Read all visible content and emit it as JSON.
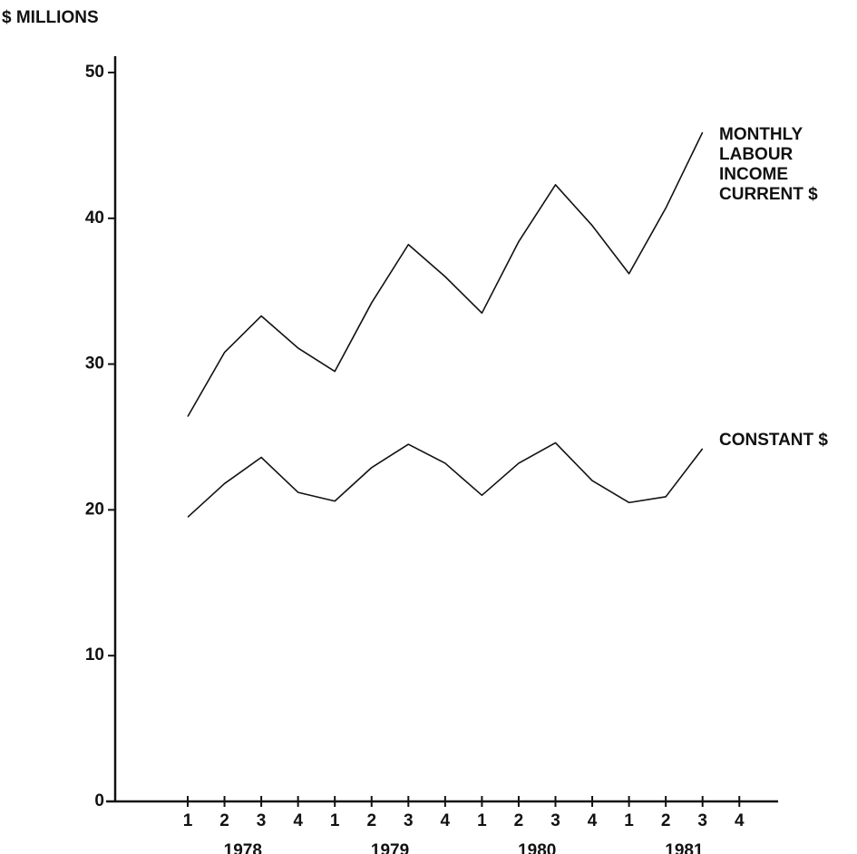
{
  "chart_data": {
    "type": "line",
    "y_label": "$ MILLIONS",
    "categories": [
      "1",
      "2",
      "3",
      "4",
      "1",
      "2",
      "3",
      "4",
      "1",
      "2",
      "3",
      "4",
      "1",
      "2",
      "3",
      "4"
    ],
    "years": [
      "1978",
      "1979",
      "1980",
      "1981"
    ],
    "series": [
      {
        "name": "MONTHLY\nLABOUR\nINCOME\nCURRENT $",
        "color": "#111111",
        "values": [
          26.4,
          30.8,
          33.3,
          31.1,
          29.5,
          34.2,
          38.2,
          36.0,
          33.5,
          38.4,
          42.3,
          39.5,
          36.2,
          40.7,
          45.9,
          null
        ]
      },
      {
        "name": "CONSTANT $",
        "color": "#111111",
        "values": [
          19.5,
          21.8,
          23.6,
          21.2,
          20.6,
          22.9,
          24.5,
          23.2,
          21.0,
          23.2,
          24.6,
          22.0,
          20.5,
          20.9,
          24.2,
          null
        ]
      }
    ],
    "ylim": [
      0,
      50
    ],
    "yticks": [
      0,
      10,
      20,
      30,
      40,
      50
    ]
  }
}
